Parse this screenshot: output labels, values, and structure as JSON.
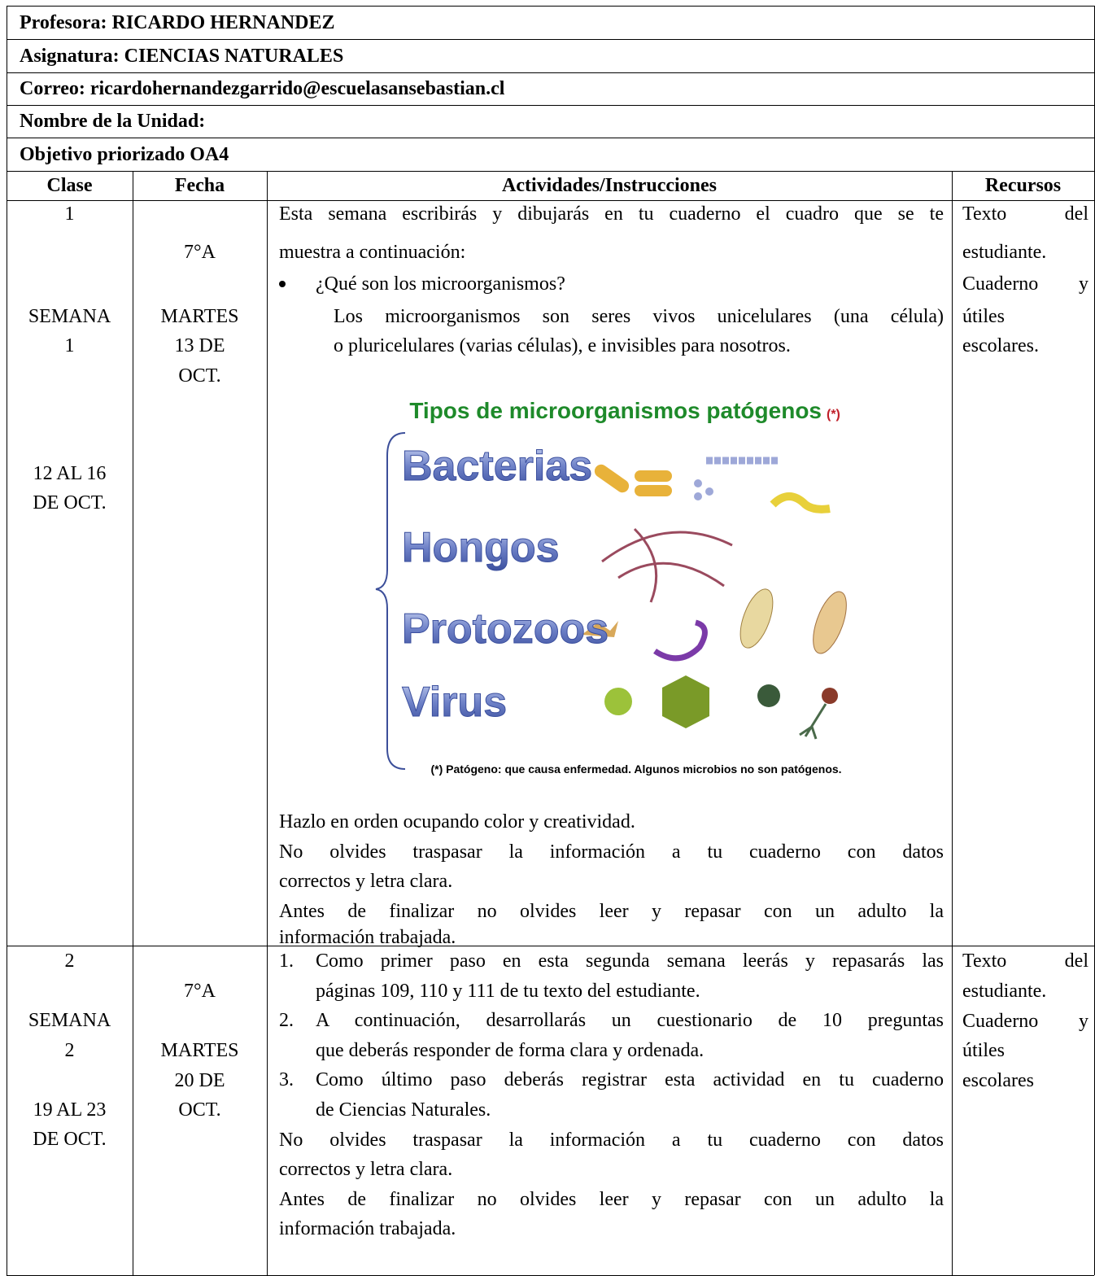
{
  "header": {
    "profesora": "Profesora: RICARDO HERNANDEZ",
    "asignatura": "Asignatura: CIENCIAS NATURALES",
    "correo": "Correo: ricardohernandezgarrido@escuelasansebastian.cl",
    "unidad": "Nombre de la Unidad:",
    "objetivo": "Objetivo priorizado OA4"
  },
  "table": {
    "columns": [
      "Clase",
      "Fecha",
      "Actividades/Instrucciones",
      "Recursos"
    ],
    "rows": [
      {
        "clase": [
          "1",
          "SEMANA",
          "1",
          "12 AL 16",
          "DE OCT."
        ],
        "fecha": [
          "7°A",
          "MARTES",
          "13 DE",
          "OCT."
        ],
        "intro": [
          "Esta semana escribirás y dibujarás en tu cuaderno el cuadro que se te",
          "muestra a continuación:"
        ],
        "bullet": "¿Qué son los microorganismos?",
        "bullet_text": [
          "Los microorganismos son seres vivos unicelulares (una célula)",
          "o pluricelulares (varias células), e invisibles para nosotros."
        ],
        "figure": {
          "title": "Tipos de microorganismos patógenos",
          "title_note": "(*)",
          "labels": [
            "Bacterias",
            "Hongos",
            "Protozoos",
            "Virus"
          ],
          "footnote": "(*) Patógeno: que causa enfermedad. Algunos microbios no son patógenos."
        },
        "closing": [
          "Hazlo en orden ocupando color y creatividad.",
          "No olvides traspasar la información a tu cuaderno con datos",
          "correctos y letra clara.",
          "Antes de finalizar no olvides leer y repasar con un adulto la",
          "información trabajada."
        ],
        "recursos": [
          "Texto del",
          "estudiante.",
          "Cuaderno y",
          "útiles",
          "escolares."
        ]
      },
      {
        "clase": [
          "2",
          "SEMANA",
          "2",
          "19 AL 23",
          "DE OCT."
        ],
        "fecha": [
          "7°A",
          "MARTES",
          "20 DE",
          "OCT."
        ],
        "items": [
          {
            "number": "1.",
            "lines": [
              "Como primer paso en esta segunda semana leerás y repasarás las",
              "páginas 109, 110 y 111 de tu texto del estudiante."
            ]
          },
          {
            "number": "2.",
            "lines": [
              "A continuación, desarrollarás un cuestionario de 10 preguntas",
              "que deberás responder de forma clara y ordenada."
            ]
          },
          {
            "number": "3.",
            "lines": [
              "Como último paso deberás registrar esta actividad en tu cuaderno",
              "de Ciencias Naturales."
            ]
          }
        ],
        "closing": [
          "No olvides traspasar la información a tu cuaderno con datos",
          "correctos y letra clara.",
          "Antes de finalizar no olvides leer y repasar con un adulto la",
          "información trabajada."
        ],
        "recursos": [
          "Texto del",
          "estudiante.",
          "Cuaderno y",
          "útiles",
          "escolares"
        ]
      }
    ]
  }
}
